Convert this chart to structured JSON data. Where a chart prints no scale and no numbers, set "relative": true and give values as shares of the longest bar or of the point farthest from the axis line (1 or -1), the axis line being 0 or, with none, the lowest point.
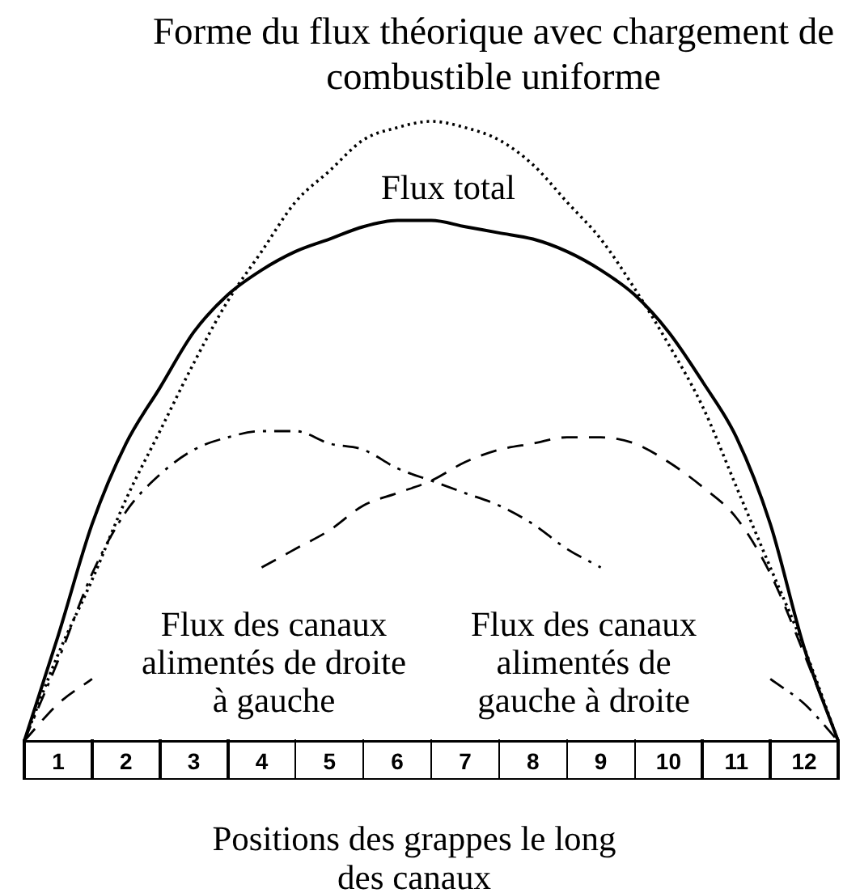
{
  "chart_data": {
    "type": "line",
    "title": "Forme du flux théorique avec chargement de combustible uniforme",
    "xlabel": "Positions des grappes le long des canaux",
    "relative": true,
    "marker": "none",
    "x": [
      0,
      0.5,
      1,
      1.5,
      2,
      2.5,
      3,
      3.5,
      4,
      4.5,
      5,
      5.5,
      6,
      6.5,
      7,
      7.5,
      8,
      8.5,
      9,
      9.5,
      10,
      10.5,
      11,
      11.5,
      12
    ],
    "xlim": [
      0,
      12
    ],
    "xticks": [
      {
        "value": 0.5,
        "label": "1"
      },
      {
        "value": 1.5,
        "label": "2"
      },
      {
        "value": 2.5,
        "label": "3"
      },
      {
        "value": 3.5,
        "label": "4"
      },
      {
        "value": 4.5,
        "label": "5"
      },
      {
        "value": 5.5,
        "label": "6"
      },
      {
        "value": 6.5,
        "label": "7"
      },
      {
        "value": 7.5,
        "label": "8"
      },
      {
        "value": 8.5,
        "label": "9"
      },
      {
        "value": 9.5,
        "label": "10"
      },
      {
        "value": 10.5,
        "label": "11"
      },
      {
        "value": 11.5,
        "label": "12"
      }
    ],
    "series": [
      {
        "color": "#000000",
        "line_style": "dotted",
        "values": [
          0,
          0.14,
          0.26,
          0.39,
          0.5,
          0.61,
          0.71,
          0.79,
          0.87,
          0.92,
          0.97,
          0.99,
          1,
          0.99,
          0.97,
          0.93,
          0.87,
          0.81,
          0.73,
          0.64,
          0.54,
          0.41,
          0.28,
          0.15,
          0
        ]
      },
      {
        "name": "Flux total",
        "color": "#000000",
        "line_style": "solid",
        "values": [
          0,
          0.17,
          0.35,
          0.48,
          0.57,
          0.66,
          0.72,
          0.76,
          0.79,
          0.81,
          0.83,
          0.84,
          0.84,
          0.83,
          0.82,
          0.81,
          0.79,
          0.76,
          0.72,
          0.66,
          0.58,
          0.49,
          0.35,
          0.15,
          0
        ]
      },
      {
        "name": "Flux des canaux alimentés de droite à gauche",
        "color": "#000000",
        "line_style": "dashdot",
        "values": [
          0,
          0.13,
          0.27,
          0.37,
          0.43,
          0.47,
          0.49,
          0.5,
          0.5,
          0.48,
          0.47,
          0.44,
          0.42,
          0.4,
          0.38,
          0.35,
          0.31,
          0.28,
          null,
          null,
          null,
          null,
          0.1,
          0.06,
          0
        ]
      },
      {
        "name": "Flux des canaux alimentés de gauche à droite",
        "color": "#000000",
        "line_style": "dashed",
        "values": [
          0,
          0.06,
          0.1,
          null,
          null,
          null,
          null,
          0.28,
          0.31,
          0.34,
          0.38,
          0.4,
          0.42,
          0.45,
          0.47,
          0.48,
          0.49,
          0.49,
          0.48,
          0.45,
          0.41,
          0.36,
          0.27,
          0.14,
          0
        ]
      }
    ]
  }
}
